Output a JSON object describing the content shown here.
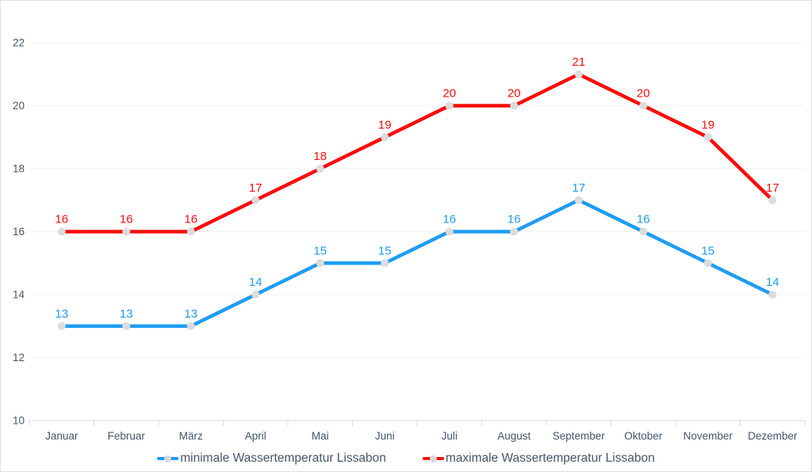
{
  "chart_data": {
    "type": "line",
    "title": "",
    "categories": [
      "Januar",
      "Februar",
      "März",
      "April",
      "Mai",
      "Juni",
      "Juli",
      "August",
      "September",
      "Oktober",
      "November",
      "Dezember"
    ],
    "series": [
      {
        "name": "minimale Wassertemperatur Lissabon",
        "color": "#1e9cf4",
        "values": [
          13,
          13,
          13,
          14,
          15,
          15,
          16,
          16,
          17,
          16,
          15,
          14
        ]
      },
      {
        "name": "maximale Wassertemperatur Lissabon",
        "color": "#fa0d0d",
        "values": [
          16,
          16,
          16,
          17,
          18,
          19,
          20,
          20,
          21,
          20,
          19,
          17
        ]
      }
    ],
    "y_ticks": [
      10,
      12,
      14,
      16,
      18,
      20,
      22
    ],
    "ylim": [
      10,
      22
    ],
    "grid": true,
    "show_data_labels": true,
    "legend_position": "bottom",
    "marker_color": "#dcdcdc"
  },
  "colors": {
    "axis_text": "#44546a",
    "gridline": "#f2f2f2",
    "axis_line": "#d9d9d9",
    "background": "#ffffff",
    "border": "#dedede"
  },
  "legend": {
    "items": [
      {
        "label": "minimale Wassertemperatur Lissabon",
        "color": "#1e9cf4"
      },
      {
        "label": "maximale Wassertemperatur Lissabon",
        "color": "#fa0d0d"
      }
    ]
  }
}
